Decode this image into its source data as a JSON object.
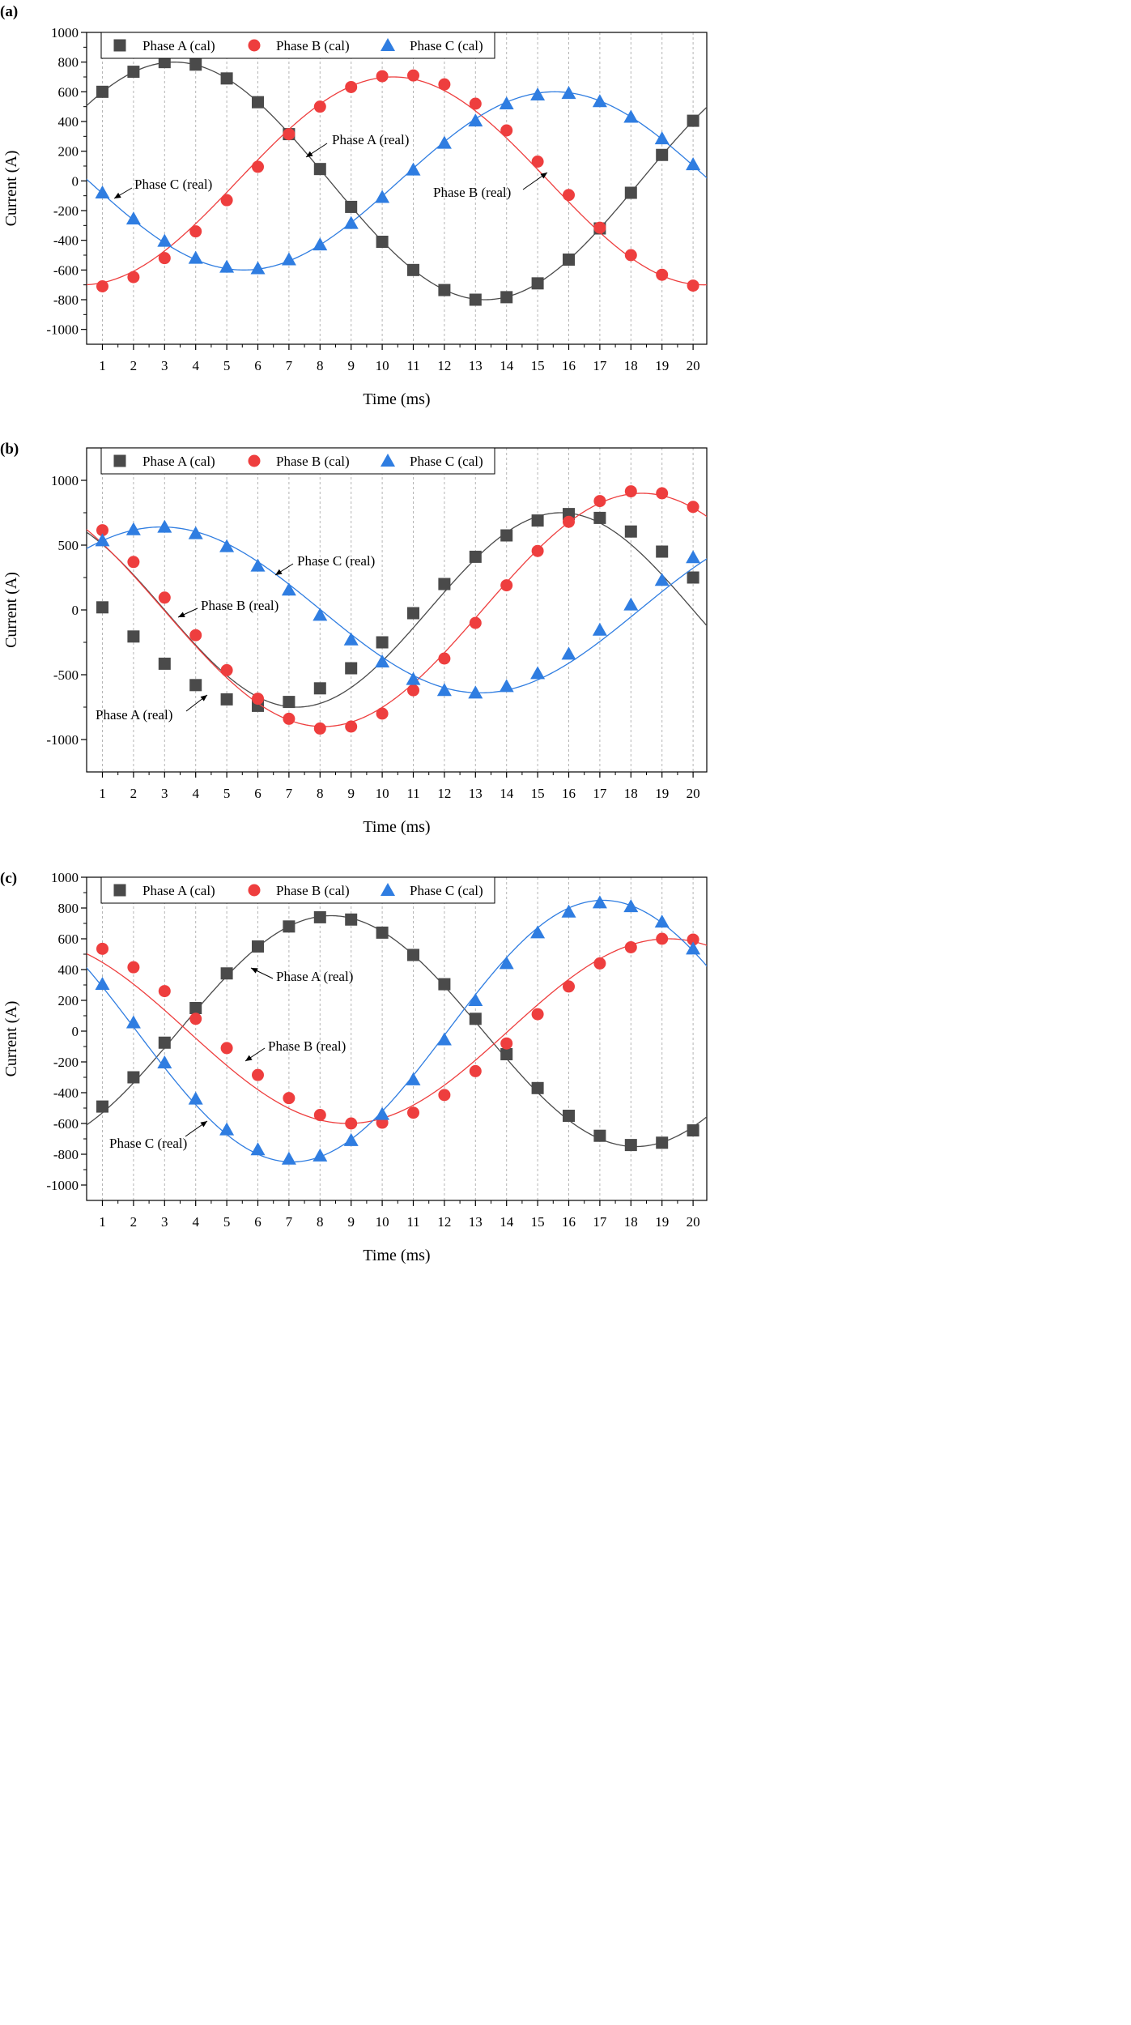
{
  "colors": {
    "phaseA": "#4a4a4a",
    "phaseB": "#ee3e3e",
    "phaseC": "#2f7de1",
    "grid": "#b5b5b5"
  },
  "legend_labels": [
    "Phase A (cal)",
    "Phase B (cal)",
    "Phase C (cal)"
  ],
  "chart_data": [
    {
      "panel_label": "(a)",
      "type": "line",
      "xlabel": "Time (ms)",
      "ylabel": "Current (A)",
      "ylim": [
        -1100,
        1000
      ],
      "yticks": [
        -1000,
        -800,
        -600,
        -400,
        -200,
        0,
        200,
        400,
        600,
        800,
        1000
      ],
      "yticklabels": [
        "-1000",
        "-800",
        "-600",
        "-400",
        "-200",
        "0",
        "200",
        "400",
        "600",
        "800",
        "1000"
      ],
      "xticks": [
        1,
        2,
        3,
        4,
        5,
        6,
        7,
        8,
        9,
        10,
        11,
        12,
        13,
        14,
        15,
        16,
        17,
        18,
        19,
        20
      ],
      "xlim": [
        0.6,
        20.5
      ],
      "grid": "vertical dashed",
      "legend": "top",
      "series": [
        {
          "name": "Phase A (cal)",
          "marker": "square",
          "real": {
            "amp": 800,
            "t0": 3.31,
            "period": 20
          },
          "values": [
            600,
            735,
            800,
            783,
            690,
            530,
            315,
            80,
            -175,
            -410,
            -600,
            -735,
            -800,
            -783,
            -690,
            -530,
            -320,
            -80,
            175,
            405
          ]
        },
        {
          "name": "Phase B (cal)",
          "marker": "circle",
          "real": {
            "amp": 700,
            "t0": 10.35,
            "period": 20
          },
          "values": [
            -710,
            -648,
            -520,
            -340,
            -130,
            95,
            315,
            500,
            632,
            705,
            710,
            650,
            520,
            340,
            130,
            -95,
            -315,
            -500,
            -632,
            -705
          ]
        },
        {
          "name": "Phase C (cal)",
          "marker": "triangle",
          "real": {
            "amp": 600,
            "t0": 15.55,
            "period": 20
          },
          "values": [
            -80,
            -255,
            -405,
            -520,
            -580,
            -590,
            -530,
            -430,
            -285,
            -110,
            75,
            255,
            405,
            520,
            580,
            590,
            535,
            430,
            285,
            110
          ]
        }
      ],
      "annotations": [
        {
          "text": "Phase A (real)",
          "series": 0
        },
        {
          "text": "Phase B (real)",
          "series": 1
        },
        {
          "text": "Phase C (real)",
          "series": 2
        }
      ]
    },
    {
      "panel_label": "(b)",
      "type": "line",
      "xlabel": "Time (ms)",
      "ylabel": "Current (A)",
      "ylim": [
        -1250,
        1250
      ],
      "yticks": [
        -1000,
        -500,
        0,
        500,
        1000
      ],
      "yticklabels": [
        "-1000",
        "-500",
        "0",
        "500",
        "1000"
      ],
      "xticks": [
        1,
        2,
        3,
        4,
        5,
        6,
        7,
        8,
        9,
        10,
        11,
        12,
        13,
        14,
        15,
        16,
        17,
        18,
        19,
        20
      ],
      "xlim": [
        0.6,
        20.5
      ],
      "grid": "vertical dashed",
      "legend": "top",
      "series": [
        {
          "name": "Phase A (cal)",
          "marker": "square",
          "real": {
            "amp": 750,
            "t0": 15.75,
            "period": 17
          },
          "values": [
            20,
            -205,
            -415,
            -580,
            -690,
            -740,
            -710,
            -605,
            -450,
            -250,
            -25,
            200,
            410,
            575,
            690,
            740,
            710,
            605,
            450,
            250
          ]
        },
        {
          "name": "Phase B (cal)",
          "marker": "circle",
          "real": {
            "amp": 900,
            "t0": 18.35,
            "period": 20.5
          },
          "values": [
            615,
            370,
            95,
            -195,
            -465,
            -685,
            -840,
            -915,
            -900,
            -800,
            -620,
            -375,
            -100,
            190,
            455,
            680,
            840,
            915,
            900,
            795
          ]
        },
        {
          "name": "Phase C (cal)",
          "marker": "triangle",
          "real": {
            "amp": 640,
            "t0": 2.9,
            "period": 20.5
          },
          "values": [
            535,
            620,
            640,
            590,
            490,
            340,
            155,
            -40,
            -230,
            -400,
            -535,
            -620,
            -640,
            -590,
            -490,
            -340,
            -155,
            40,
            230,
            405
          ]
        }
      ],
      "annotations": [
        {
          "text": "Phase A (real)",
          "series": 0
        },
        {
          "text": "Phase B (real)",
          "series": 1
        },
        {
          "text": "Phase C (real)",
          "series": 2
        }
      ]
    },
    {
      "panel_label": "(c)",
      "type": "line",
      "xlabel": "Time (ms)",
      "ylabel": "Current (A)",
      "ylim": [
        -1100,
        1000
      ],
      "yticks": [
        -1000,
        -800,
        -600,
        -400,
        -200,
        0,
        200,
        400,
        600,
        800,
        1000
      ],
      "yticklabels": [
        "-1000",
        "-800",
        "-600",
        "-400",
        "-200",
        "0",
        "200",
        "400",
        "600",
        "800",
        "1000"
      ],
      "xticks": [
        1,
        2,
        3,
        4,
        5,
        6,
        7,
        8,
        9,
        10,
        11,
        12,
        13,
        14,
        15,
        16,
        17,
        18,
        19,
        20
      ],
      "xlim": [
        0.6,
        20.5
      ],
      "grid": "vertical dashed",
      "legend": "top",
      "series": [
        {
          "name": "Phase A (cal)",
          "marker": "square",
          "real": {
            "amp": 750,
            "t0": 8.35,
            "period": 19.6
          },
          "values": [
            -490,
            -300,
            -75,
            150,
            375,
            550,
            680,
            740,
            725,
            640,
            495,
            305,
            80,
            -150,
            -370,
            -550,
            -680,
            -740,
            -725,
            -645
          ]
        },
        {
          "name": "Phase B (cal)",
          "marker": "circle",
          "real": {
            "amp": 600,
            "t0": 19.2,
            "period": 20.6
          },
          "values": [
            535,
            415,
            260,
            80,
            -110,
            -285,
            -435,
            -545,
            -600,
            -595,
            -530,
            -415,
            -260,
            -80,
            110,
            290,
            440,
            545,
            600,
            595
          ]
        },
        {
          "name": "Phase C (cal)",
          "marker": "triangle",
          "real": {
            "amp": 850,
            "t0": 17.1,
            "period": 20
          },
          "values": [
            305,
            55,
            -205,
            -440,
            -640,
            -770,
            -830,
            -810,
            -710,
            -540,
            -315,
            -55,
            200,
            440,
            640,
            775,
            835,
            810,
            710,
            535
          ]
        }
      ],
      "annotations": [
        {
          "text": "Phase A (real)",
          "series": 0
        },
        {
          "text": "Phase B (real)",
          "series": 1
        },
        {
          "text": "Phase C (real)",
          "series": 2
        }
      ]
    }
  ]
}
